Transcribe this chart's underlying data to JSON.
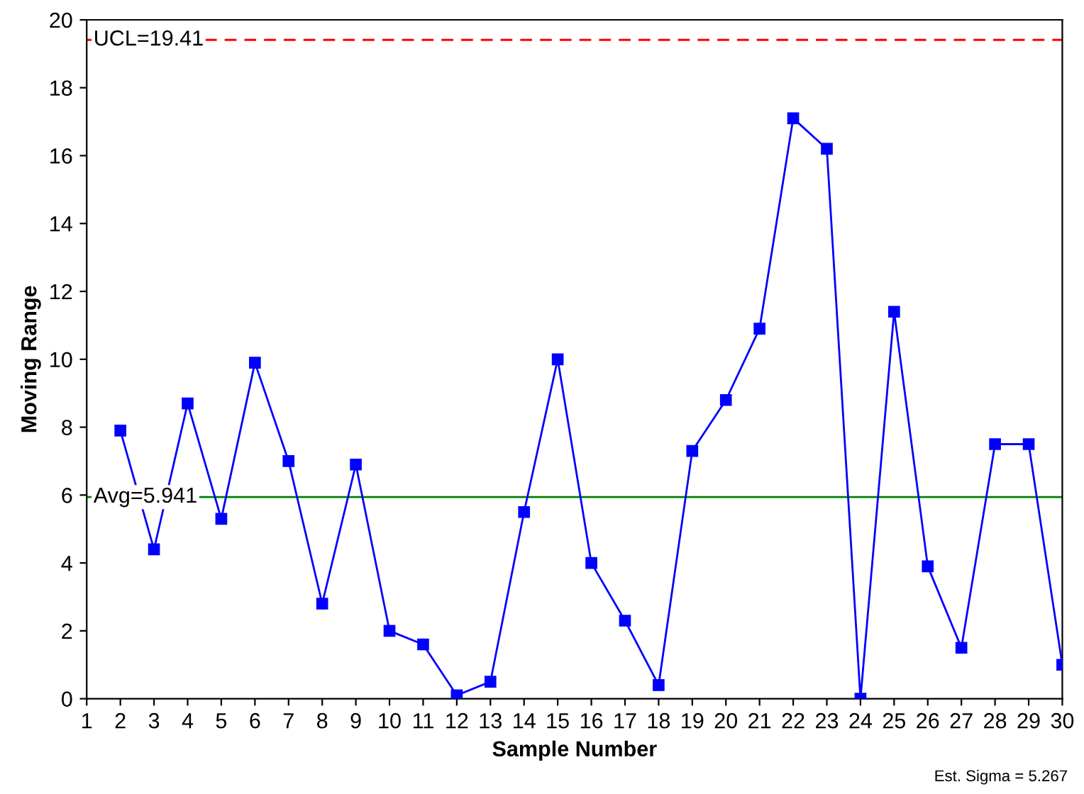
{
  "chart_data": {
    "type": "line",
    "xlabel": "Sample Number",
    "ylabel": "Moving Range",
    "x": [
      2,
      3,
      4,
      5,
      6,
      7,
      8,
      9,
      10,
      11,
      12,
      13,
      14,
      15,
      16,
      17,
      18,
      19,
      20,
      21,
      22,
      23,
      24,
      25,
      26,
      27,
      28,
      29,
      30
    ],
    "series": [
      {
        "color": "#0000ff",
        "values": [
          7.9,
          4.4,
          8.7,
          5.3,
          9.9,
          7.0,
          2.8,
          6.9,
          2.0,
          1.6,
          0.1,
          0.5,
          5.5,
          10.0,
          4.0,
          2.3,
          0.4,
          7.3,
          8.8,
          10.9,
          17.1,
          16.2,
          0.0,
          11.4,
          3.9,
          1.5,
          7.5,
          7.5,
          1.0
        ]
      }
    ],
    "marker": "square",
    "line_style": "solid",
    "xlim": [
      1,
      30
    ],
    "xticks": [
      1,
      2,
      3,
      4,
      5,
      6,
      7,
      8,
      9,
      10,
      11,
      12,
      13,
      14,
      15,
      16,
      17,
      18,
      19,
      20,
      21,
      22,
      23,
      24,
      25,
      26,
      27,
      28,
      29,
      30
    ],
    "ylim": [
      0,
      20
    ],
    "yticks": [
      0,
      2,
      4,
      6,
      8,
      10,
      12,
      14,
      16,
      18,
      20
    ],
    "ref_lines": [
      {
        "axis": "y",
        "value": 19.41,
        "label": "UCL=19.41",
        "color": "#ff0000",
        "line_style": "dashed"
      },
      {
        "axis": "y",
        "value": 5.941,
        "label": "Avg=5.941",
        "color": "#008000",
        "line_style": "solid"
      }
    ],
    "annotations": [
      "Est. Sigma = 5.267"
    ],
    "grid": false,
    "legend": false
  }
}
